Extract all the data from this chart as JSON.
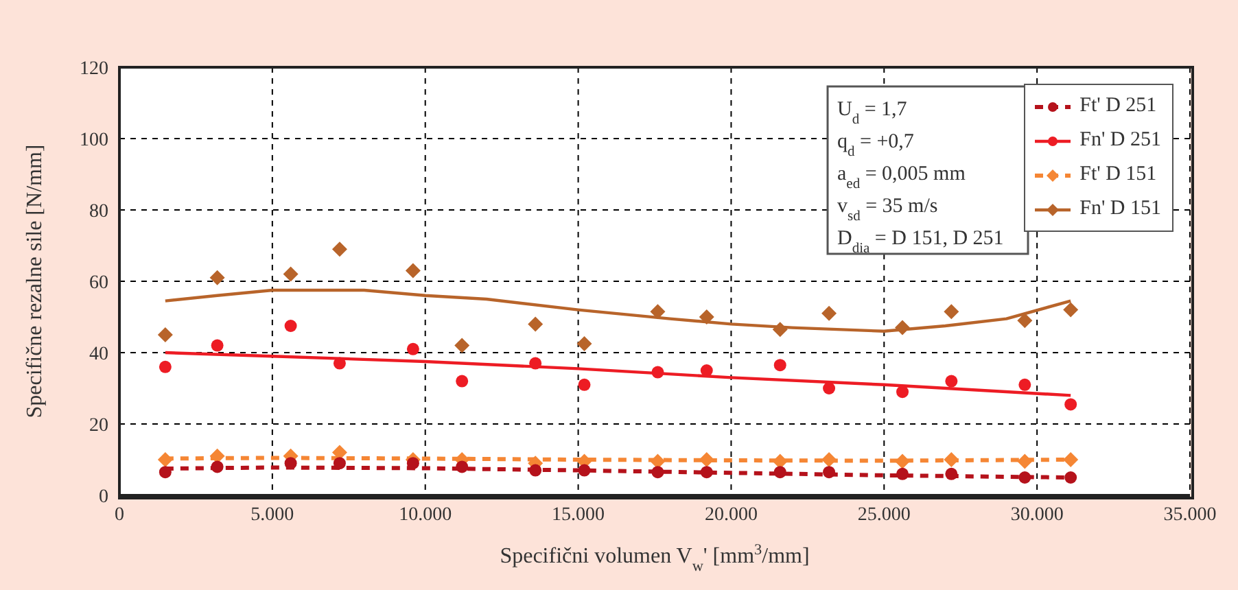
{
  "chart_data": {
    "type": "scatter",
    "xlabel": "Specifični volumen V$_{w}$' [mm$^{3}$/mm]",
    "ylabel": "Specifične rezalne sile [N/mm]",
    "xlim": [
      0,
      35000
    ],
    "xticks": [
      0,
      {
        "value": 5000,
        "label": "5.000"
      },
      {
        "value": 10000,
        "label": "10.000"
      },
      {
        "value": 15000,
        "label": "15.000"
      },
      {
        "value": 20000,
        "label": "20.000"
      },
      {
        "value": 25000,
        "label": "25.000"
      },
      {
        "value": 30000,
        "label": "30.000"
      },
      {
        "value": 35000,
        "label": "35.000"
      }
    ],
    "ylim": [
      0,
      120
    ],
    "yticks": [
      0,
      20,
      40,
      60,
      80,
      100,
      120
    ],
    "grid": true,
    "legend": "top right",
    "annotations": [
      "U$_{d}$ = 1,7",
      "q$_{d}$ = +0,7",
      "a$_{ed}$ = 0,005 mm",
      "v$_{sd}$ = 35 m/s",
      "D$_{dia}$ = D 151, D 251"
    ],
    "series": [
      {
        "name": "Ft' D 251",
        "marker": "circle",
        "color": "#b5121b",
        "x": [
          1500,
          3200,
          5600,
          7200,
          9600,
          11200,
          13600,
          15200,
          17600,
          19200,
          21600,
          23200,
          25600,
          27200,
          29600,
          31100
        ],
        "values": [
          6.5,
          8,
          9,
          9,
          9,
          8,
          7,
          7,
          6.5,
          6.5,
          6.5,
          6.5,
          6,
          6,
          5,
          5
        ]
      },
      {
        "name": "Fn' D 251",
        "marker": "circle",
        "color": "#ed1c24",
        "x": [
          1500,
          3200,
          5600,
          7200,
          9600,
          11200,
          13600,
          15200,
          17600,
          19200,
          21600,
          23200,
          25600,
          27200,
          29600,
          31100
        ],
        "values": [
          36,
          42,
          47.5,
          37,
          41,
          32,
          37,
          31,
          34.5,
          35,
          36.5,
          30,
          29,
          32,
          31,
          25.5
        ]
      },
      {
        "name": "Ft' D 151",
        "marker": "diamond",
        "color": "#f58634",
        "x": [
          1500,
          3200,
          5600,
          7200,
          9600,
          11200,
          13600,
          15200,
          17600,
          19200,
          21600,
          23200,
          25600,
          27200,
          29600,
          31100
        ],
        "values": [
          10,
          11,
          11,
          12,
          10,
          10,
          9,
          9.5,
          9.5,
          10,
          9.5,
          10,
          9.5,
          10,
          9.5,
          10
        ]
      },
      {
        "name": "Fn' D 151",
        "marker": "diamond",
        "color": "#b8642a",
        "x": [
          1500,
          3200,
          5600,
          7200,
          9600,
          11200,
          13600,
          15200,
          17600,
          19200,
          21600,
          23200,
          25600,
          27200,
          29600,
          31100
        ],
        "values": [
          45,
          61,
          62,
          69,
          63,
          42,
          48,
          42.5,
          51.5,
          50,
          46.5,
          51,
          47,
          51.5,
          49,
          52
        ]
      },
      {
        "type": "line",
        "marker": "none",
        "line_style": "dashed",
        "color": "#b5121b",
        "x": [
          1500,
          5000,
          10000,
          15000,
          20000,
          25000,
          31100
        ],
        "values": [
          7.5,
          7.8,
          7.6,
          7,
          6.3,
          5.6,
          5
        ]
      },
      {
        "type": "line",
        "marker": "none",
        "line_style": "solid",
        "color": "#ed1c24",
        "x": [
          1500,
          5000,
          10000,
          15000,
          20000,
          25000,
          31100
        ],
        "values": [
          40,
          39,
          37.5,
          35.5,
          33,
          31,
          28
        ]
      },
      {
        "type": "line",
        "marker": "none",
        "line_style": "dashed",
        "color": "#f58634",
        "x": [
          1500,
          5000,
          10000,
          15000,
          20000,
          25000,
          31100
        ],
        "values": [
          10.3,
          10.5,
          10.3,
          10,
          9.8,
          9.7,
          10
        ]
      },
      {
        "type": "line",
        "marker": "none",
        "line_style": "solid",
        "color": "#b8642a",
        "x": [
          1500,
          3200,
          5000,
          8000,
          10000,
          12000,
          15000,
          18000,
          20000,
          22000,
          25000,
          27000,
          29000,
          31100
        ],
        "values": [
          54.5,
          56,
          57.5,
          57.5,
          56,
          55,
          52,
          49.5,
          48,
          47,
          46,
          47.5,
          49.5,
          54.5
        ]
      }
    ]
  }
}
